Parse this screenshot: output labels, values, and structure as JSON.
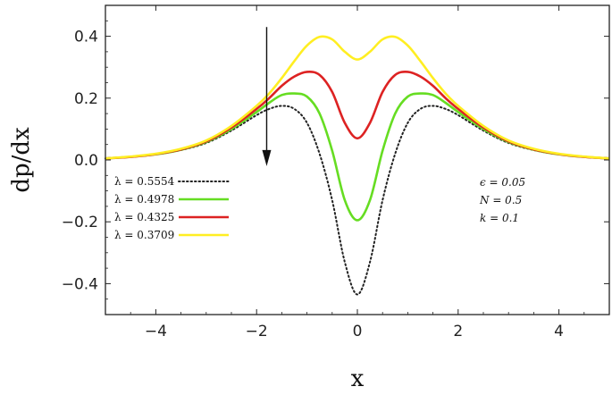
{
  "chart_data": {
    "type": "line",
    "xlabel": "x",
    "ylabel": "dp/dx",
    "xlim": [
      -5,
      5
    ],
    "ylim": [
      -0.5,
      0.5
    ],
    "x_ticks": [
      -4,
      -2,
      0,
      2,
      4
    ],
    "x_tick_labels": [
      "−4",
      "−2",
      "0",
      "2",
      "4"
    ],
    "y_ticks": [
      -0.4,
      -0.2,
      0.0,
      0.2,
      0.4
    ],
    "y_tick_labels": [
      "−0.4",
      "−0.2",
      "0.0",
      "0.2",
      "0.4"
    ],
    "grid": false,
    "legend_position": "left",
    "annotation": "arrow pointing down",
    "parameters": [
      {
        "label": "ϵ = 0.05"
      },
      {
        "label": "N = 0.5"
      },
      {
        "label": "k = 0.1"
      }
    ],
    "series": [
      {
        "name": "λ = 0.5554",
        "color": "#222222",
        "style": "dotted",
        "x": [
          -5,
          -4.5,
          -4,
          -3.5,
          -3,
          -2.5,
          -2,
          -1.75,
          -1.5,
          -1.25,
          -1,
          -0.75,
          -0.5,
          -0.25,
          0,
          0.25,
          0.5,
          0.75,
          1,
          1.25,
          1.5,
          1.75,
          2,
          2.5,
          3,
          3.5,
          4,
          4.5,
          5
        ],
        "y": [
          0.005,
          0.01,
          0.018,
          0.032,
          0.055,
          0.095,
          0.145,
          0.165,
          0.175,
          0.165,
          0.12,
          0.02,
          -0.13,
          -0.33,
          -0.435,
          -0.33,
          -0.13,
          0.02,
          0.12,
          0.165,
          0.175,
          0.165,
          0.145,
          0.095,
          0.055,
          0.032,
          0.018,
          0.01,
          0.005
        ]
      },
      {
        "name": "λ = 0.4978",
        "color": "#66dd22",
        "style": "solid",
        "x": [
          -5,
          -4.5,
          -4,
          -3.5,
          -3,
          -2.5,
          -2,
          -1.75,
          -1.5,
          -1.25,
          -1,
          -0.75,
          -0.5,
          -0.25,
          0,
          0.25,
          0.5,
          0.75,
          1,
          1.25,
          1.5,
          1.75,
          2,
          2.5,
          3,
          3.5,
          4,
          4.5,
          5
        ],
        "y": [
          0.005,
          0.01,
          0.018,
          0.033,
          0.058,
          0.1,
          0.155,
          0.185,
          0.21,
          0.215,
          0.205,
          0.15,
          0.03,
          -0.13,
          -0.195,
          -0.13,
          0.03,
          0.15,
          0.205,
          0.215,
          0.21,
          0.185,
          0.155,
          0.1,
          0.058,
          0.033,
          0.018,
          0.01,
          0.005
        ]
      },
      {
        "name": "λ = 0.4325",
        "color": "#dd2222",
        "style": "solid",
        "x": [
          -5,
          -4.5,
          -4,
          -3.5,
          -3,
          -2.5,
          -2,
          -1.75,
          -1.5,
          -1.25,
          -1,
          -0.75,
          -0.5,
          -0.25,
          0,
          0.25,
          0.5,
          0.75,
          1,
          1.25,
          1.5,
          1.75,
          2,
          2.5,
          3,
          3.5,
          4,
          4.5,
          5
        ],
        "y": [
          0.005,
          0.01,
          0.019,
          0.034,
          0.06,
          0.105,
          0.165,
          0.2,
          0.24,
          0.27,
          0.285,
          0.275,
          0.22,
          0.12,
          0.07,
          0.12,
          0.22,
          0.275,
          0.285,
          0.27,
          0.24,
          0.2,
          0.165,
          0.105,
          0.06,
          0.034,
          0.019,
          0.01,
          0.005
        ]
      },
      {
        "name": "λ = 0.3709",
        "color": "#ffee22",
        "style": "solid",
        "x": [
          -5,
          -4.5,
          -4,
          -3.5,
          -3,
          -2.5,
          -2,
          -1.75,
          -1.5,
          -1.25,
          -1,
          -0.75,
          -0.5,
          -0.25,
          0,
          0.25,
          0.5,
          0.75,
          1,
          1.25,
          1.5,
          1.75,
          2,
          2.5,
          3,
          3.5,
          4,
          4.5,
          5
        ],
        "y": [
          0.005,
          0.011,
          0.02,
          0.036,
          0.063,
          0.11,
          0.175,
          0.215,
          0.265,
          0.32,
          0.37,
          0.398,
          0.39,
          0.35,
          0.325,
          0.35,
          0.39,
          0.398,
          0.37,
          0.32,
          0.265,
          0.215,
          0.175,
          0.11,
          0.063,
          0.036,
          0.02,
          0.011,
          0.005
        ]
      }
    ]
  }
}
